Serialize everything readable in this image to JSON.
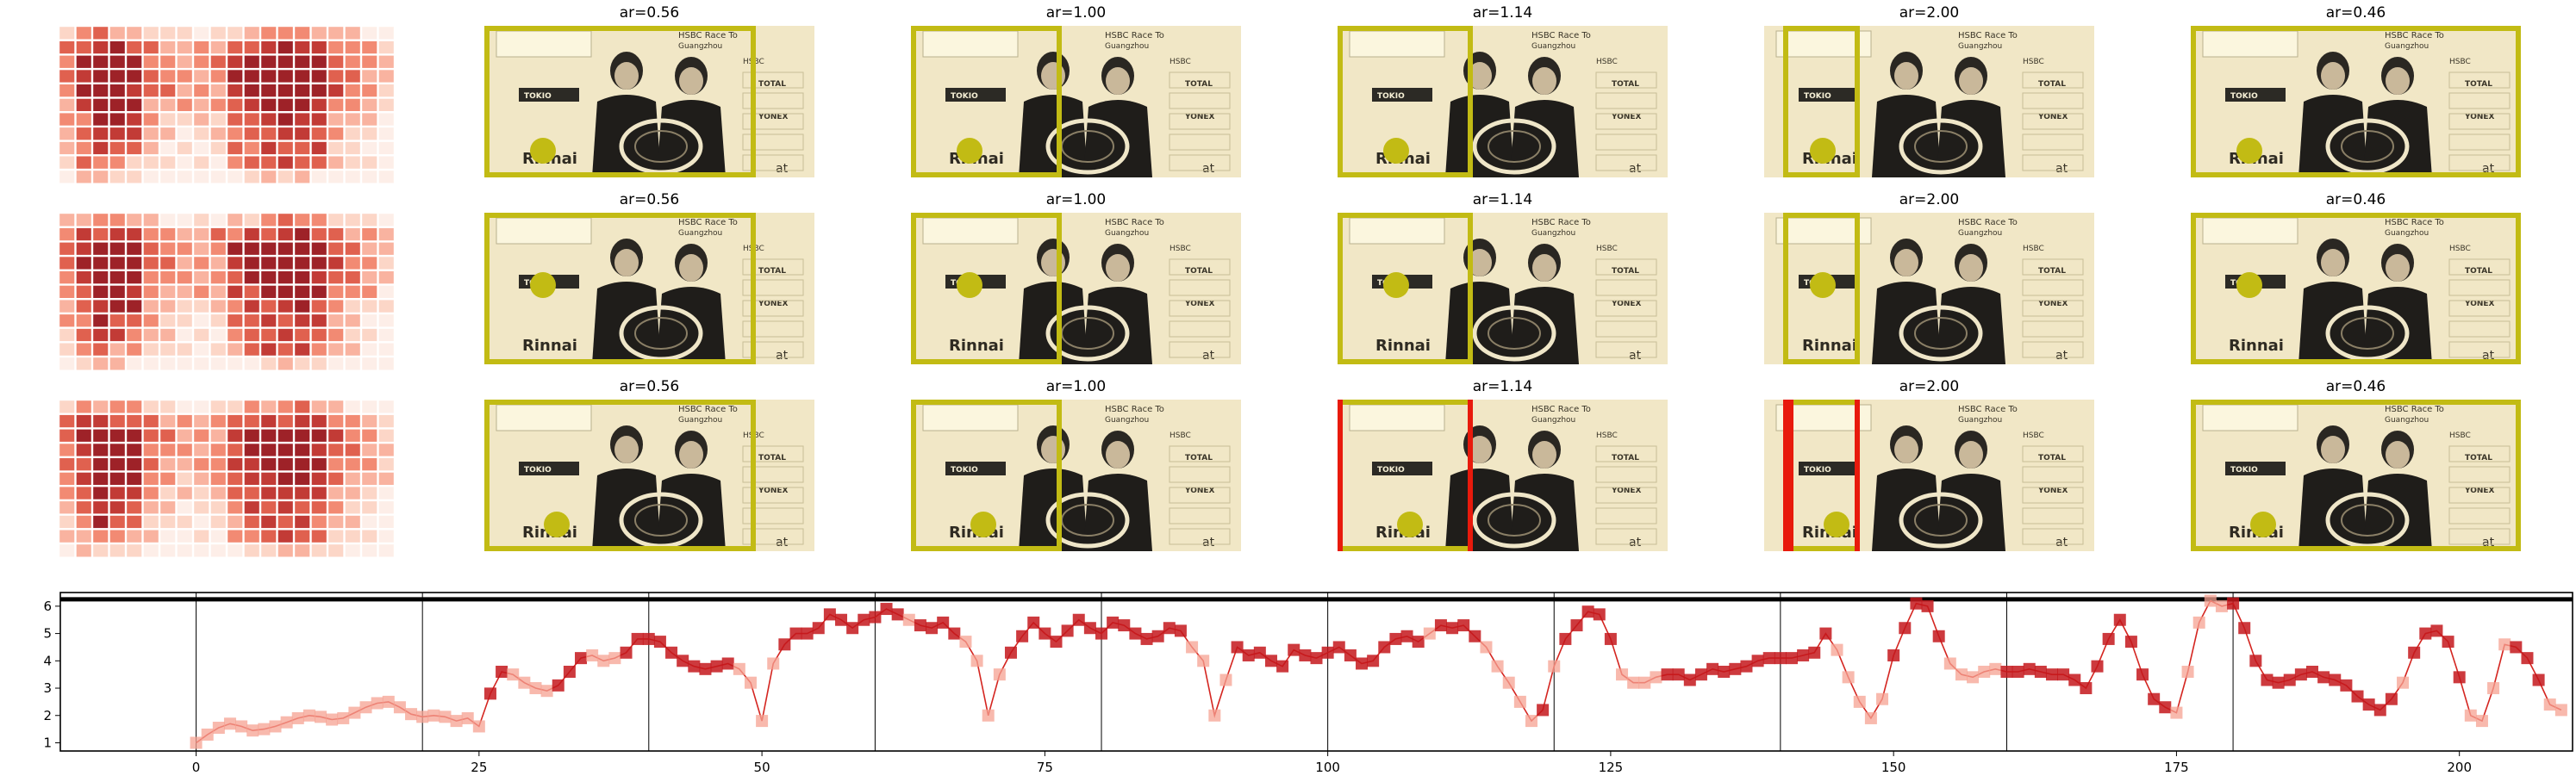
{
  "panel_rows": [
    {
      "titles": [
        "ar=0.56",
        "ar=1.00",
        "ar=1.14",
        "ar=2.00",
        "ar=0.46"
      ]
    },
    {
      "titles": [
        "ar=0.56",
        "ar=1.00",
        "ar=1.14",
        "ar=2.00",
        "ar=0.46"
      ]
    },
    {
      "titles": [
        "ar=0.56",
        "ar=1.00",
        "ar=1.14",
        "ar=2.00",
        "ar=0.46"
      ]
    }
  ],
  "photo_signage": {
    "banner_top": "HSBC Race To",
    "banner_sub": "Guangzhou",
    "brand": "HSBC",
    "sponsor_1": "TOKIO",
    "sponsor_2": "Rinnai",
    "sponsor_3": "TOTAL",
    "sponsor_4": "YONEX",
    "sponsor_5": "at"
  },
  "colors": {
    "box": "#c2bb14",
    "box_alert": "#e81a0c",
    "line": "#d42520",
    "marker_dark": "#c4181c",
    "marker_light": "#f6a192",
    "photo_tint": "#f1e7c6"
  },
  "chart_data": {
    "type": "line",
    "xlim": [
      -12,
      210
    ],
    "ylim": [
      0.7,
      6.5
    ],
    "xticks": [
      "0",
      "25",
      "50",
      "75",
      "100",
      "125",
      "150",
      "175",
      "200"
    ],
    "yticks": [
      "1",
      "2",
      "3",
      "4",
      "5",
      "6"
    ],
    "vertical_lines_at": [
      0,
      20,
      40,
      60,
      80,
      100,
      120,
      140,
      160,
      180
    ],
    "horizontal_line_at": 6.25,
    "grid": false,
    "series": [
      {
        "x_start": 0,
        "x_step": 1,
        "values": [
          1.0,
          1.3,
          1.55,
          1.7,
          1.6,
          1.45,
          1.5,
          1.6,
          1.75,
          1.9,
          2.0,
          1.95,
          1.85,
          1.9,
          2.1,
          2.3,
          2.45,
          2.5,
          2.3,
          2.05,
          1.95,
          2.0,
          1.95,
          1.8,
          1.9,
          1.6,
          2.8,
          3.6,
          3.5,
          3.2,
          3.0,
          2.9,
          3.1,
          3.6,
          4.1,
          4.2,
          4.0,
          4.1,
          4.3,
          4.8,
          4.8,
          4.7,
          4.3,
          4.0,
          3.8,
          3.7,
          3.8,
          3.9,
          3.7,
          3.2,
          1.8,
          3.9,
          4.6,
          5.0,
          5.0,
          5.2,
          5.7,
          5.5,
          5.2,
          5.5,
          5.6,
          5.9,
          5.7,
          5.5,
          5.3,
          5.2,
          5.4,
          5.0,
          4.7,
          4.0,
          2.0,
          3.5,
          4.3,
          4.9,
          5.4,
          5.0,
          4.7,
          5.1,
          5.5,
          5.2,
          5.0,
          5.4,
          5.3,
          5.0,
          4.8,
          4.9,
          5.2,
          5.1,
          4.5,
          4.0,
          2.0,
          3.3,
          4.5,
          4.2,
          4.3,
          4.0,
          3.8,
          4.4,
          4.2,
          4.1,
          4.3,
          4.5,
          4.2,
          3.9,
          4.0,
          4.5,
          4.8,
          4.9,
          4.7,
          5.0,
          5.3,
          5.2,
          5.3,
          4.9,
          4.5,
          3.8,
          3.2,
          2.5,
          1.8,
          2.2,
          3.8,
          4.8,
          5.3,
          5.8,
          5.7,
          4.8,
          3.5,
          3.2,
          3.2,
          3.4,
          3.5,
          3.5,
          3.3,
          3.5,
          3.7,
          3.6,
          3.7,
          3.8,
          4.0,
          4.1,
          4.1,
          4.1,
          4.2,
          4.3,
          5.0,
          4.4,
          3.4,
          2.5,
          1.9,
          2.6,
          4.2,
          5.2,
          6.1,
          6.0,
          4.9,
          3.9,
          3.5,
          3.4,
          3.6,
          3.7,
          3.6,
          3.6,
          3.7,
          3.6,
          3.5,
          3.5,
          3.3,
          3.0,
          3.8,
          4.8,
          5.5,
          4.7,
          3.5,
          2.6,
          2.3,
          2.1,
          3.6,
          5.4,
          6.2,
          6.0,
          6.1,
          5.2,
          4.0,
          3.3,
          3.2,
          3.3,
          3.5,
          3.6,
          3.4,
          3.3,
          3.1,
          2.7,
          2.4,
          2.2,
          2.6,
          3.2,
          4.3,
          5.0,
          5.1,
          4.7,
          3.4,
          2.0,
          1.8,
          3.0,
          4.6,
          4.5,
          4.1,
          3.3,
          2.4,
          2.2
        ],
        "dark_at": [
          26,
          27,
          32,
          33,
          34,
          38,
          39,
          40,
          41,
          42,
          43,
          44,
          45,
          46,
          47,
          52,
          53,
          54,
          55,
          56,
          57,
          58,
          59,
          60,
          61,
          62,
          64,
          65,
          66,
          67,
          72,
          73,
          74,
          75,
          76,
          77,
          78,
          79,
          80,
          81,
          82,
          83,
          84,
          85,
          86,
          87,
          92,
          93,
          94,
          95,
          96,
          97,
          98,
          99,
          100,
          101,
          102,
          103,
          104,
          105,
          106,
          107,
          108,
          110,
          111,
          112,
          113,
          119,
          121,
          122,
          123,
          124,
          125,
          130,
          131,
          132,
          133,
          134,
          135,
          136,
          137,
          138,
          139,
          140,
          141,
          142,
          143,
          144,
          150,
          151,
          152,
          153,
          154,
          160,
          161,
          162,
          163,
          164,
          165,
          166,
          167,
          168,
          169,
          170,
          171,
          172,
          173,
          174,
          180,
          181,
          182,
          183,
          184,
          185,
          186,
          187,
          188,
          189,
          190,
          191,
          192,
          193,
          194,
          196,
          197,
          198,
          199,
          200,
          205,
          206,
          207
        ]
      }
    ]
  }
}
